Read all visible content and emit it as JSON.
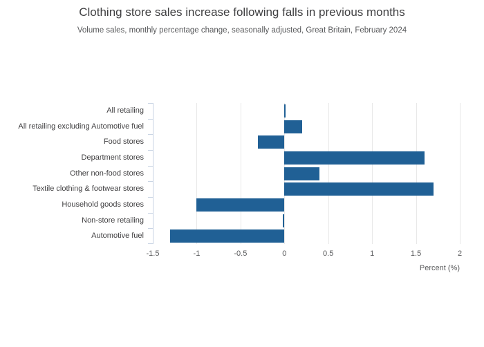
{
  "chart_data": {
    "type": "bar",
    "orientation": "horizontal",
    "title": "Clothing store sales increase following falls in previous months",
    "subtitle": "Volume sales, monthly percentage change, seasonally adjusted, Great Britain, February 2024",
    "categories": [
      "All retailing",
      "All retailing excluding Automotive fuel",
      "Food stores",
      "Department stores",
      "Other non-food stores",
      "Textile clothing & footwear stores",
      "Household goods stores",
      "Non-store retailing",
      "Automotive fuel"
    ],
    "values": [
      0,
      0.2,
      -0.3,
      1.6,
      0.4,
      1.7,
      -1,
      0,
      -1.3
    ],
    "xlabel": "Percent (%)",
    "ylabel": "",
    "xlim": [
      -1.5,
      2
    ],
    "xticks": [
      -1.5,
      -1,
      -0.5,
      0,
      0.5,
      1,
      1.5,
      2
    ],
    "xtick_labels": [
      "-1.5",
      "-1",
      "-0.5",
      "0",
      "0.5",
      "1",
      "1.5",
      "2"
    ],
    "grid": "vertical-only",
    "legend": "none",
    "colors": {
      "bar": "#206095",
      "axis": "#c9d4e4",
      "gridline": "#e8e8e8",
      "title_text": "#404042",
      "subtitle_text": "#58595b",
      "tick_text": "#58595b",
      "category_text": "#414042",
      "background": "#ffffff"
    }
  }
}
